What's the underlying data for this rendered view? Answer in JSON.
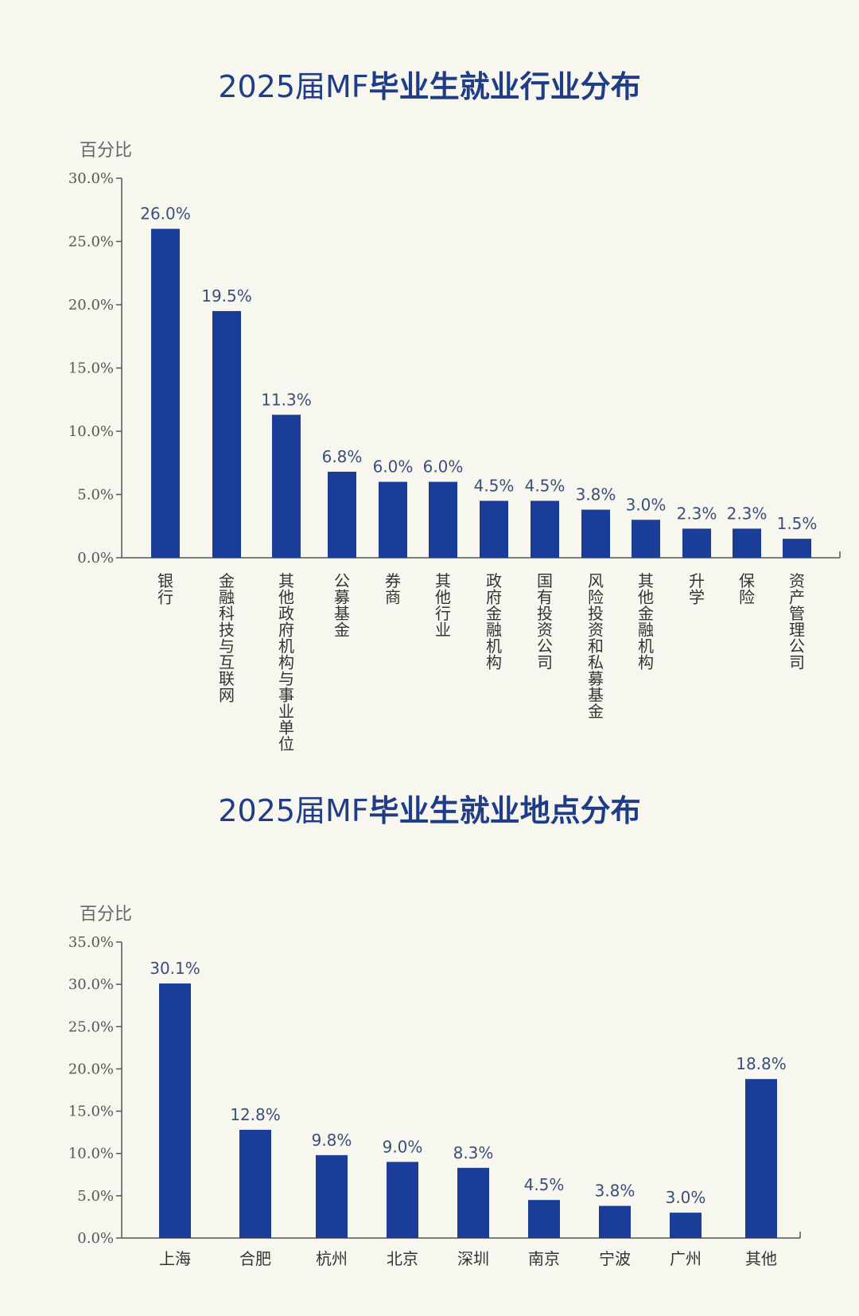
{
  "chart_data": [
    {
      "type": "bar",
      "title_normal": "2025届MF",
      "title_bold": "毕业生就业行业分布",
      "ylabel": "百分比",
      "xlabel": "",
      "ylim": [
        0,
        30
      ],
      "yticks": [
        "0.0%",
        "5.0%",
        "10.0%",
        "15.0%",
        "20.0%",
        "25.0%",
        "30.0%"
      ],
      "ytick_values": [
        0,
        5,
        10,
        15,
        20,
        25,
        30
      ],
      "categories": [
        "银行",
        "金融科技与互联网",
        "其他政府机构与事业单位",
        "公募基金",
        "券商",
        "其他行业",
        "政府金融机构",
        "国有投资公司",
        "风险投资和私募基金",
        "其他金融机构",
        "升学",
        "保险",
        "资产管理公司"
      ],
      "values": [
        26.0,
        19.5,
        11.3,
        6.8,
        6.0,
        6.0,
        4.5,
        4.5,
        3.8,
        3.0,
        2.3,
        2.3,
        1.5
      ],
      "value_labels": [
        "26.0%",
        "19.5%",
        "11.3%",
        "6.8%",
        "6.0%",
        "6.0%",
        "4.5%",
        "4.5%",
        "3.8%",
        "3.0%",
        "2.3%",
        "2.3%",
        "1.5%"
      ],
      "bar_color": "#1a3e98",
      "grid": false,
      "category_orientation": "vertical"
    },
    {
      "type": "bar",
      "title_normal": "2025届MF",
      "title_bold": "毕业生就业地点分布",
      "ylabel": "百分比",
      "xlabel": "",
      "ylim": [
        0,
        35
      ],
      "yticks": [
        "0.0%",
        "5.0%",
        "10.0%",
        "15.0%",
        "20.0%",
        "25.0%",
        "30.0%",
        "35.0%"
      ],
      "ytick_values": [
        0,
        5,
        10,
        15,
        20,
        25,
        30,
        35
      ],
      "categories": [
        "上海",
        "合肥",
        "杭州",
        "北京",
        "深圳",
        "南京",
        "宁波",
        "广州",
        "其他"
      ],
      "values": [
        30.1,
        12.8,
        9.8,
        9.0,
        8.3,
        4.5,
        3.8,
        3.0,
        18.8
      ],
      "value_labels": [
        "30.1%",
        "12.8%",
        "9.8%",
        "9.0%",
        "8.3%",
        "4.5%",
        "3.8%",
        "3.0%",
        "18.8%"
      ],
      "bar_color": "#1a3e98",
      "grid": false,
      "category_orientation": "horizontal"
    }
  ]
}
